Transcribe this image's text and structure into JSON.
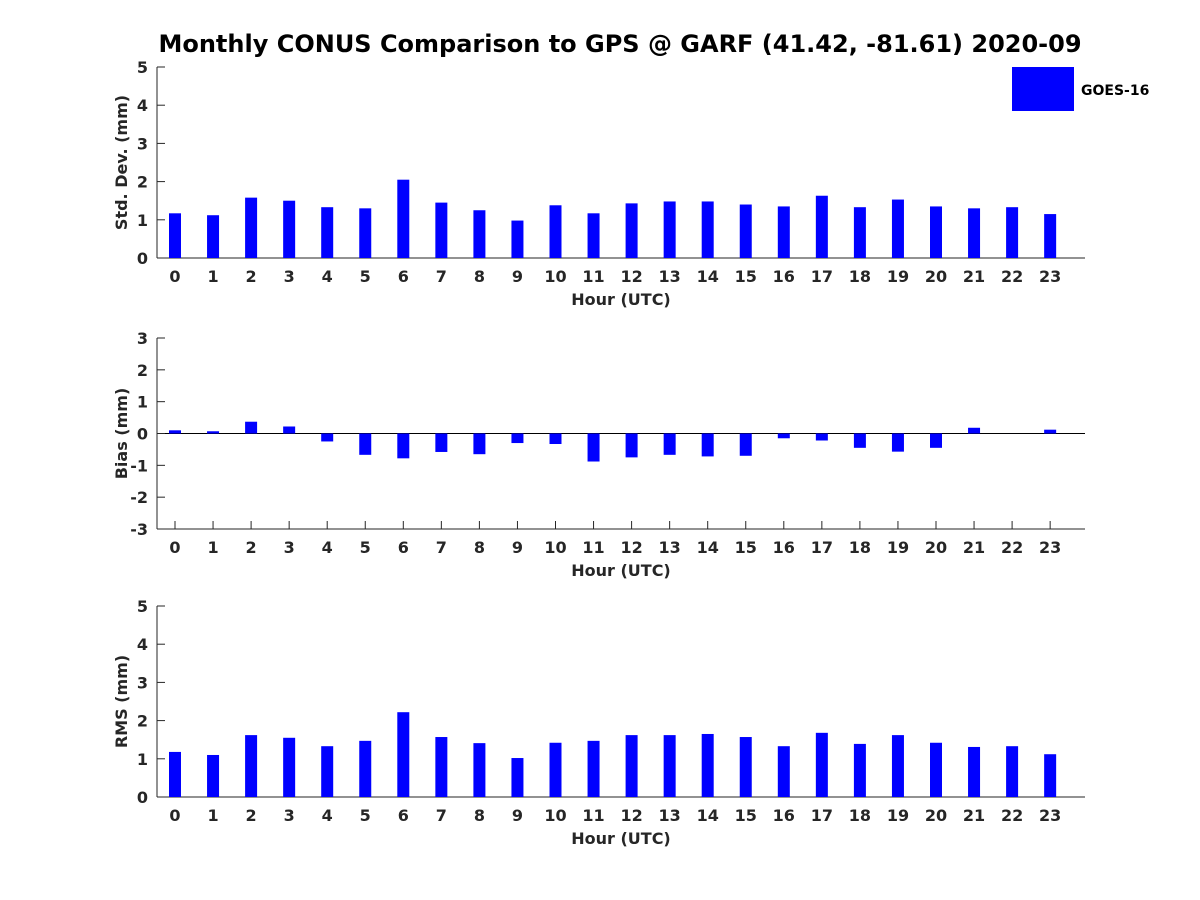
{
  "title": "Monthly CONUS Comparison to GPS @ GARF (41.42, -81.61) 2020-09",
  "legend": {
    "label": "GOES-16",
    "color": "#0000ff",
    "placement": "top-right"
  },
  "chart_data": [
    {
      "type": "bar",
      "xlabel": "Hour (UTC)",
      "ylabel": "Std. Dev. (mm)",
      "ylim": [
        0,
        5
      ],
      "yticks": [
        0,
        1,
        2,
        3,
        4,
        5
      ],
      "categories": [
        "0",
        "1",
        "2",
        "3",
        "4",
        "5",
        "6",
        "7",
        "8",
        "9",
        "10",
        "11",
        "12",
        "13",
        "14",
        "15",
        "16",
        "17",
        "18",
        "19",
        "20",
        "21",
        "22",
        "23"
      ],
      "series": [
        {
          "name": "GOES-16",
          "color": "#0000ff",
          "values": [
            1.17,
            1.12,
            1.58,
            1.5,
            1.33,
            1.3,
            2.05,
            1.45,
            1.25,
            0.98,
            1.38,
            1.17,
            1.43,
            1.48,
            1.48,
            1.4,
            1.35,
            1.63,
            1.33,
            1.53,
            1.35,
            1.3,
            1.33,
            1.15
          ]
        }
      ]
    },
    {
      "type": "bar",
      "xlabel": "Hour (UTC)",
      "ylabel": "Bias (mm)",
      "ylim": [
        -3,
        3
      ],
      "yticks": [
        -3,
        -2,
        -1,
        0,
        1,
        2,
        3
      ],
      "categories": [
        "0",
        "1",
        "2",
        "3",
        "4",
        "5",
        "6",
        "7",
        "8",
        "9",
        "10",
        "11",
        "12",
        "13",
        "14",
        "15",
        "16",
        "17",
        "18",
        "19",
        "20",
        "21",
        "22",
        "23"
      ],
      "series": [
        {
          "name": "GOES-16",
          "color": "#0000ff",
          "values": [
            0.1,
            0.07,
            0.37,
            0.22,
            -0.25,
            -0.67,
            -0.78,
            -0.58,
            -0.65,
            -0.3,
            -0.33,
            -0.88,
            -0.75,
            -0.67,
            -0.72,
            -0.7,
            -0.15,
            -0.22,
            -0.45,
            -0.57,
            -0.45,
            0.18,
            0.0,
            0.12
          ]
        }
      ]
    },
    {
      "type": "bar",
      "xlabel": "Hour (UTC)",
      "ylabel": "RMS (mm)",
      "ylim": [
        0,
        5
      ],
      "yticks": [
        0,
        1,
        2,
        3,
        4,
        5
      ],
      "categories": [
        "0",
        "1",
        "2",
        "3",
        "4",
        "5",
        "6",
        "7",
        "8",
        "9",
        "10",
        "11",
        "12",
        "13",
        "14",
        "15",
        "16",
        "17",
        "18",
        "19",
        "20",
        "21",
        "22",
        "23"
      ],
      "series": [
        {
          "name": "GOES-16",
          "color": "#0000ff",
          "values": [
            1.18,
            1.1,
            1.62,
            1.55,
            1.33,
            1.47,
            2.22,
            1.57,
            1.41,
            1.02,
            1.42,
            1.47,
            1.62,
            1.62,
            1.65,
            1.57,
            1.33,
            1.68,
            1.39,
            1.62,
            1.42,
            1.31,
            1.33,
            1.12
          ]
        }
      ]
    }
  ]
}
